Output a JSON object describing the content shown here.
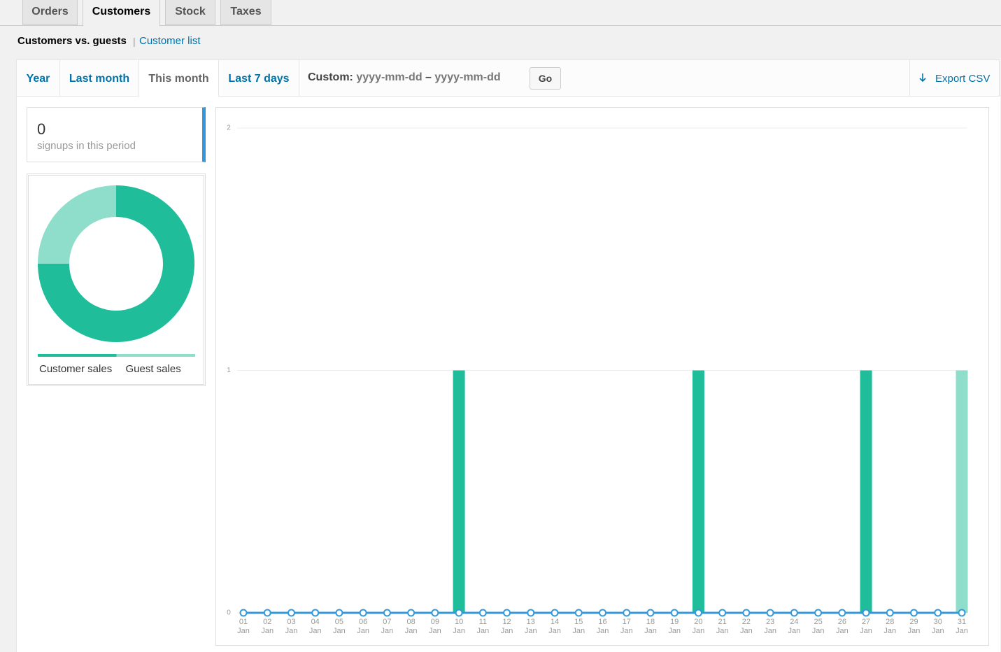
{
  "tabs": [
    "Orders",
    "Customers",
    "Stock",
    "Taxes"
  ],
  "subnav": {
    "current": "Customers vs. guests",
    "separator": "|",
    "link": "Customer list"
  },
  "ranges": [
    "Year",
    "Last month",
    "This month",
    "Last 7 days"
  ],
  "custom": {
    "label": "Custom:",
    "from": "yyyy-mm-dd",
    "dash": "–",
    "to": "yyyy-mm-dd",
    "button": "Go"
  },
  "export": "Export CSV",
  "summary": {
    "value": 0,
    "label": "signups in this period"
  },
  "chart_data": [
    {
      "type": "pie",
      "categories": [
        "Customer sales",
        "Guest sales"
      ],
      "values": [
        3,
        1
      ],
      "colors": [
        "#1fbd9a",
        "#8fdecb"
      ]
    },
    {
      "type": "bar",
      "stacked": true,
      "grid": true,
      "categories": [
        "01 Jan",
        "02 Jan",
        "03 Jan",
        "04 Jan",
        "05 Jan",
        "06 Jan",
        "07 Jan",
        "08 Jan",
        "09 Jan",
        "10 Jan",
        "11 Jan",
        "12 Jan",
        "13 Jan",
        "14 Jan",
        "15 Jan",
        "16 Jan",
        "17 Jan",
        "18 Jan",
        "19 Jan",
        "20 Jan",
        "21 Jan",
        "22 Jan",
        "23 Jan",
        "24 Jan",
        "25 Jan",
        "26 Jan",
        "27 Jan",
        "28 Jan",
        "29 Jan",
        "30 Jan",
        "31 Jan"
      ],
      "series": [
        {
          "name": "Customer sales",
          "color": "#1fbd9a",
          "values": [
            0,
            0,
            0,
            0,
            0,
            0,
            0,
            0,
            0,
            1,
            0,
            0,
            0,
            0,
            0,
            0,
            0,
            0,
            0,
            1,
            0,
            0,
            0,
            0,
            0,
            0,
            1,
            0,
            0,
            0,
            0
          ]
        },
        {
          "name": "Guest sales",
          "color": "#8fdecb",
          "values": [
            0,
            0,
            0,
            0,
            0,
            0,
            0,
            0,
            0,
            0,
            0,
            0,
            0,
            0,
            0,
            0,
            0,
            0,
            0,
            0,
            0,
            0,
            0,
            0,
            0,
            0,
            0,
            0,
            0,
            0,
            1
          ]
        },
        {
          "type": "line",
          "color": "#3498db",
          "values": [
            0,
            0,
            0,
            0,
            0,
            0,
            0,
            0,
            0,
            0,
            0,
            0,
            0,
            0,
            0,
            0,
            0,
            0,
            0,
            0,
            0,
            0,
            0,
            0,
            0,
            0,
            0,
            0,
            0,
            0,
            0
          ]
        }
      ],
      "ylim": [
        0,
        2
      ],
      "yticks": [
        0,
        1,
        2
      ]
    }
  ]
}
